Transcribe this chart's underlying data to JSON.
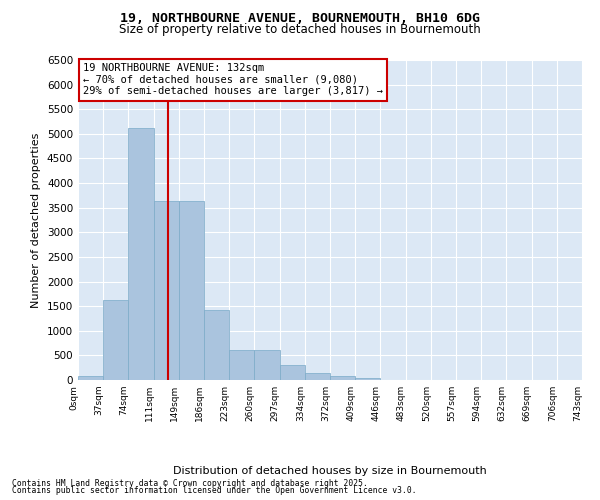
{
  "title_line1": "19, NORTHBOURNE AVENUE, BOURNEMOUTH, BH10 6DG",
  "title_line2": "Size of property relative to detached houses in Bournemouth",
  "xlabel": "Distribution of detached houses by size in Bournemouth",
  "ylabel": "Number of detached properties",
  "bins": [
    "0sqm",
    "37sqm",
    "74sqm",
    "111sqm",
    "149sqm",
    "186sqm",
    "223sqm",
    "260sqm",
    "297sqm",
    "334sqm",
    "372sqm",
    "409sqm",
    "446sqm",
    "483sqm",
    "520sqm",
    "557sqm",
    "594sqm",
    "632sqm",
    "669sqm",
    "706sqm",
    "743sqm"
  ],
  "values": [
    75,
    1620,
    5120,
    3630,
    3630,
    1420,
    610,
    610,
    305,
    135,
    75,
    45,
    0,
    0,
    0,
    0,
    0,
    0,
    0,
    0
  ],
  "bar_color": "#aac4de",
  "bar_edge_color": "#7aaac8",
  "vline_color": "#cc0000",
  "annotation_text": "19 NORTHBOURNE AVENUE: 132sqm\n← 70% of detached houses are smaller (9,080)\n29% of semi-detached houses are larger (3,817) →",
  "annotation_box_color": "#ffffff",
  "annotation_box_edge": "#cc0000",
  "ylim": [
    0,
    6500
  ],
  "yticks": [
    0,
    500,
    1000,
    1500,
    2000,
    2500,
    3000,
    3500,
    4000,
    4500,
    5000,
    5500,
    6000,
    6500
  ],
  "background_color": "#dce8f5",
  "grid_color": "#ffffff",
  "footer_line1": "Contains HM Land Registry data © Crown copyright and database right 2025.",
  "footer_line2": "Contains public sector information licensed under the Open Government Licence v3.0."
}
